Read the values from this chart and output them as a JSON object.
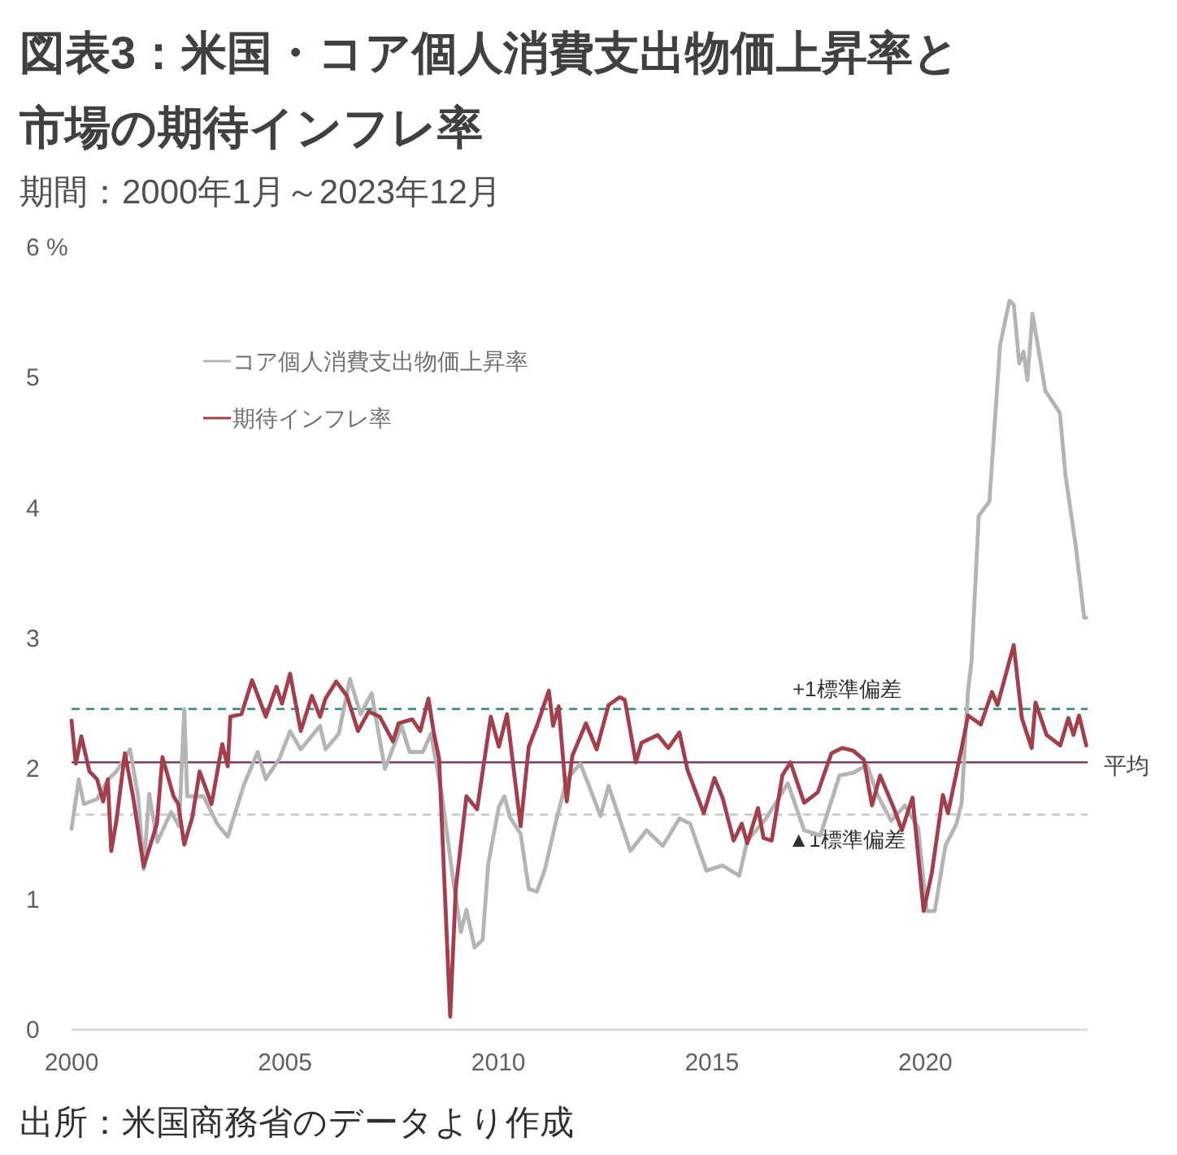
{
  "chart_data": {
    "type": "line",
    "title": "図表3：米国・コア個人消費支出物価上昇率と市場の期待インフレ率",
    "subtitle": "期間：2000年1月～2023年12月",
    "annotations": [
      "出所：米国商務省のデータより作成"
    ],
    "xlim": [
      2000,
      2023.8
    ],
    "xticks": [
      2000,
      2005,
      2010,
      2015,
      2020
    ],
    "ylim": [
      0,
      6
    ],
    "yticks": [
      0,
      1,
      2,
      3,
      4,
      5,
      {
        "value": 6,
        "label": "6 %"
      }
    ],
    "grid": false,
    "legend": "top left",
    "ref_lines": [
      {
        "axis": "y",
        "value": 2.46,
        "label": "+1標準偏差",
        "color": "#3f8f8f",
        "line_style": "dashed"
      },
      {
        "axis": "y",
        "value": 2.05,
        "label": "平均",
        "color": "#7a3b6c",
        "line_style": "solid"
      },
      {
        "axis": "y",
        "value": 1.65,
        "label": "▲1標準偏差",
        "color": "#c4c8cc",
        "line_style": "dashed"
      }
    ],
    "series": [
      {
        "name": "コア個人消費支出物価上昇率",
        "color": "#b4b4b4",
        "x": [
          2000.0,
          2000.17,
          2000.29,
          2000.6,
          2000.86,
          2001.05,
          2001.37,
          2001.56,
          2001.69,
          2001.82,
          2002.01,
          2002.33,
          2002.52,
          2002.64,
          2002.71,
          2003.09,
          2003.41,
          2003.66,
          2004.04,
          2004.36,
          2004.55,
          2004.87,
          2005.12,
          2005.37,
          2005.82,
          2005.95,
          2006.26,
          2006.52,
          2006.77,
          2007.03,
          2007.34,
          2007.73,
          2007.92,
          2008.23,
          2008.42,
          2008.68,
          2008.93,
          2009.12,
          2009.25,
          2009.44,
          2009.63,
          2009.76,
          2010.01,
          2010.14,
          2010.27,
          2010.52,
          2010.71,
          2010.9,
          2011.09,
          2011.35,
          2011.6,
          2011.92,
          2012.11,
          2012.39,
          2012.58,
          2013.09,
          2013.47,
          2013.85,
          2014.24,
          2014.49,
          2014.87,
          2015.25,
          2015.64,
          2015.83,
          2016.27,
          2016.78,
          2017.16,
          2017.54,
          2017.99,
          2018.31,
          2018.63,
          2018.88,
          2019.2,
          2019.52,
          2019.83,
          2020.03,
          2020.22,
          2020.47,
          2020.73,
          2020.85,
          2021.0,
          2021.08,
          2021.25,
          2021.5,
          2021.75,
          2021.97,
          2022.07,
          2022.2,
          2022.3,
          2022.39,
          2022.51,
          2022.81,
          2023.15,
          2023.28,
          2023.53,
          2023.72,
          2023.77
        ],
        "values": [
          1.54,
          1.92,
          1.73,
          1.77,
          1.92,
          1.98,
          2.15,
          1.79,
          1.23,
          1.81,
          1.44,
          1.67,
          1.56,
          2.46,
          1.79,
          1.79,
          1.58,
          1.48,
          1.88,
          2.13,
          1.92,
          2.08,
          2.29,
          2.15,
          2.33,
          2.15,
          2.27,
          2.69,
          2.42,
          2.58,
          2.0,
          2.33,
          2.13,
          2.13,
          2.27,
          1.79,
          1.17,
          0.75,
          0.92,
          0.63,
          0.69,
          1.27,
          1.71,
          1.79,
          1.63,
          1.5,
          1.08,
          1.06,
          1.23,
          1.6,
          1.92,
          2.04,
          1.88,
          1.64,
          1.87,
          1.37,
          1.53,
          1.41,
          1.62,
          1.58,
          1.22,
          1.26,
          1.18,
          1.45,
          1.62,
          1.89,
          1.53,
          1.49,
          1.95,
          1.97,
          2.03,
          1.8,
          1.6,
          1.72,
          1.55,
          0.91,
          0.91,
          1.41,
          1.58,
          1.74,
          2.6,
          2.82,
          3.94,
          4.05,
          5.25,
          5.59,
          5.56,
          5.11,
          5.2,
          4.98,
          5.49,
          4.9,
          4.73,
          4.26,
          3.69,
          3.16,
          3.16
        ]
      },
      {
        "name": "期待インフレ率",
        "color": "#a33e4b",
        "x": [
          2000.0,
          2000.1,
          2000.23,
          2000.42,
          2000.6,
          2000.74,
          2000.85,
          2000.93,
          2001.05,
          2001.25,
          2001.44,
          2001.69,
          2002.0,
          2002.13,
          2002.39,
          2002.5,
          2002.64,
          2002.83,
          2003.0,
          2003.28,
          2003.53,
          2003.66,
          2003.72,
          2003.98,
          2004.23,
          2004.55,
          2004.8,
          2004.93,
          2005.12,
          2005.37,
          2005.63,
          2005.82,
          2005.95,
          2006.2,
          2006.45,
          2006.71,
          2006.96,
          2007.22,
          2007.53,
          2007.66,
          2007.98,
          2008.17,
          2008.36,
          2008.49,
          2008.61,
          2008.87,
          2009.0,
          2009.25,
          2009.5,
          2009.82,
          2010.01,
          2010.2,
          2010.52,
          2010.71,
          2010.9,
          2011.18,
          2011.28,
          2011.41,
          2011.6,
          2011.73,
          2012.05,
          2012.3,
          2012.58,
          2012.84,
          2012.96,
          2013.22,
          2013.35,
          2013.73,
          2013.98,
          2014.24,
          2014.43,
          2014.81,
          2015.06,
          2015.25,
          2015.51,
          2015.7,
          2015.83,
          2016.08,
          2016.21,
          2016.4,
          2016.65,
          2016.84,
          2017.16,
          2017.48,
          2017.8,
          2018.05,
          2018.31,
          2018.56,
          2018.75,
          2018.94,
          2019.26,
          2019.45,
          2019.7,
          2019.96,
          2020.15,
          2020.41,
          2020.53,
          2020.85,
          2021.0,
          2021.3,
          2021.56,
          2021.69,
          2022.07,
          2022.26,
          2022.49,
          2022.58,
          2022.84,
          2023.16,
          2023.35,
          2023.47,
          2023.6,
          2023.77
        ],
        "values": [
          2.37,
          2.04,
          2.25,
          1.98,
          1.92,
          1.75,
          1.92,
          1.37,
          1.6,
          2.12,
          1.79,
          1.25,
          1.58,
          2.09,
          1.79,
          1.73,
          1.42,
          1.63,
          1.98,
          1.73,
          2.19,
          2.02,
          2.4,
          2.42,
          2.68,
          2.4,
          2.63,
          2.5,
          2.73,
          2.29,
          2.56,
          2.4,
          2.54,
          2.67,
          2.56,
          2.29,
          2.44,
          2.4,
          2.21,
          2.35,
          2.38,
          2.29,
          2.54,
          2.27,
          2.08,
          0.1,
          1.08,
          1.79,
          1.69,
          2.4,
          2.17,
          2.42,
          1.56,
          2.17,
          2.33,
          2.6,
          2.33,
          2.48,
          1.75,
          2.1,
          2.35,
          2.15,
          2.49,
          2.55,
          2.53,
          2.05,
          2.2,
          2.26,
          2.16,
          2.28,
          1.99,
          1.66,
          1.93,
          1.78,
          1.45,
          1.58,
          1.43,
          1.7,
          1.47,
          1.45,
          1.95,
          2.05,
          1.74,
          1.82,
          2.12,
          2.16,
          2.14,
          2.07,
          1.72,
          1.95,
          1.7,
          1.53,
          1.78,
          0.91,
          1.2,
          1.8,
          1.66,
          2.16,
          2.41,
          2.34,
          2.59,
          2.49,
          2.95,
          2.39,
          2.16,
          2.51,
          2.26,
          2.18,
          2.39,
          2.26,
          2.41,
          2.18
        ]
      }
    ]
  }
}
